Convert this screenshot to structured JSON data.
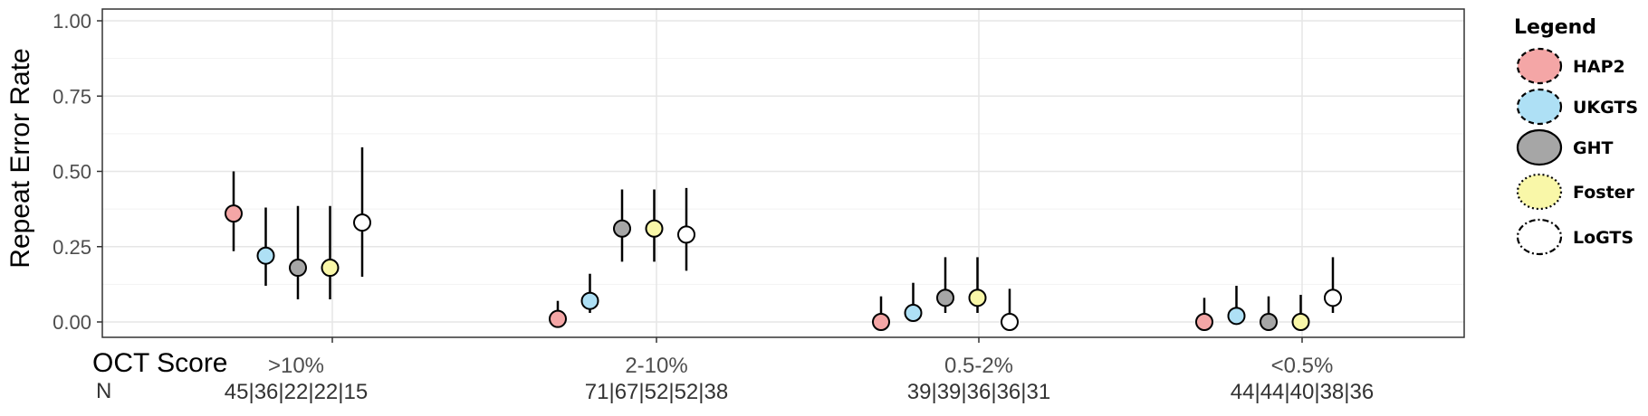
{
  "chart_data": {
    "type": "scatter",
    "title": "",
    "ylabel": "Repeat Error Rate",
    "xlabel": "OCT Score",
    "n_label": "N",
    "ylim": [
      0,
      1
    ],
    "yticks": [
      0,
      0.25,
      0.5,
      0.75,
      1
    ],
    "ytick_labels": [
      "0.00",
      "0.25",
      "0.50",
      "0.75",
      "1.00"
    ],
    "categories": [
      ">10%",
      "2-10%",
      "0.5-2%",
      "<0.5%"
    ],
    "n_counts": [
      "45|36|22|22|15",
      "71|67|52|52|38",
      "39|39|36|36|31",
      "44|44|40|38|36"
    ],
    "grid": true,
    "legend_position": "right",
    "series": [
      {
        "name": "HAP2",
        "color": "#f4a6a6",
        "border": "dashed",
        "values": [
          0.36,
          0.01,
          0.0,
          0.0
        ],
        "lower": [
          0.235,
          0.0,
          0.0,
          0.0
        ],
        "upper": [
          0.5,
          0.07,
          0.085,
          0.08
        ]
      },
      {
        "name": "UKGTS",
        "color": "#aee0f5",
        "border": "dashed",
        "values": [
          0.22,
          0.07,
          0.03,
          0.02
        ],
        "lower": [
          0.12,
          0.03,
          0.005,
          0.0
        ],
        "upper": [
          0.38,
          0.16,
          0.13,
          0.12
        ]
      },
      {
        "name": "GHT",
        "color": "#a6a6a6",
        "border": "solid",
        "values": [
          0.18,
          0.31,
          0.08,
          0.0
        ],
        "lower": [
          0.075,
          0.2,
          0.03,
          0.0
        ],
        "upper": [
          0.385,
          0.44,
          0.215,
          0.085
        ]
      },
      {
        "name": "Foster",
        "color": "#f9f7a8",
        "border": "dotted",
        "values": [
          0.18,
          0.31,
          0.08,
          0.0
        ],
        "lower": [
          0.075,
          0.2,
          0.03,
          0.0
        ],
        "upper": [
          0.385,
          0.44,
          0.215,
          0.09
        ]
      },
      {
        "name": "LoGTS",
        "color": "#ffffff",
        "border": "dashdot",
        "values": [
          0.33,
          0.29,
          0.0,
          0.08
        ],
        "lower": [
          0.15,
          0.17,
          0.0,
          0.03
        ],
        "upper": [
          0.58,
          0.445,
          0.11,
          0.215
        ]
      }
    ]
  },
  "legend": {
    "title": "Legend"
  }
}
